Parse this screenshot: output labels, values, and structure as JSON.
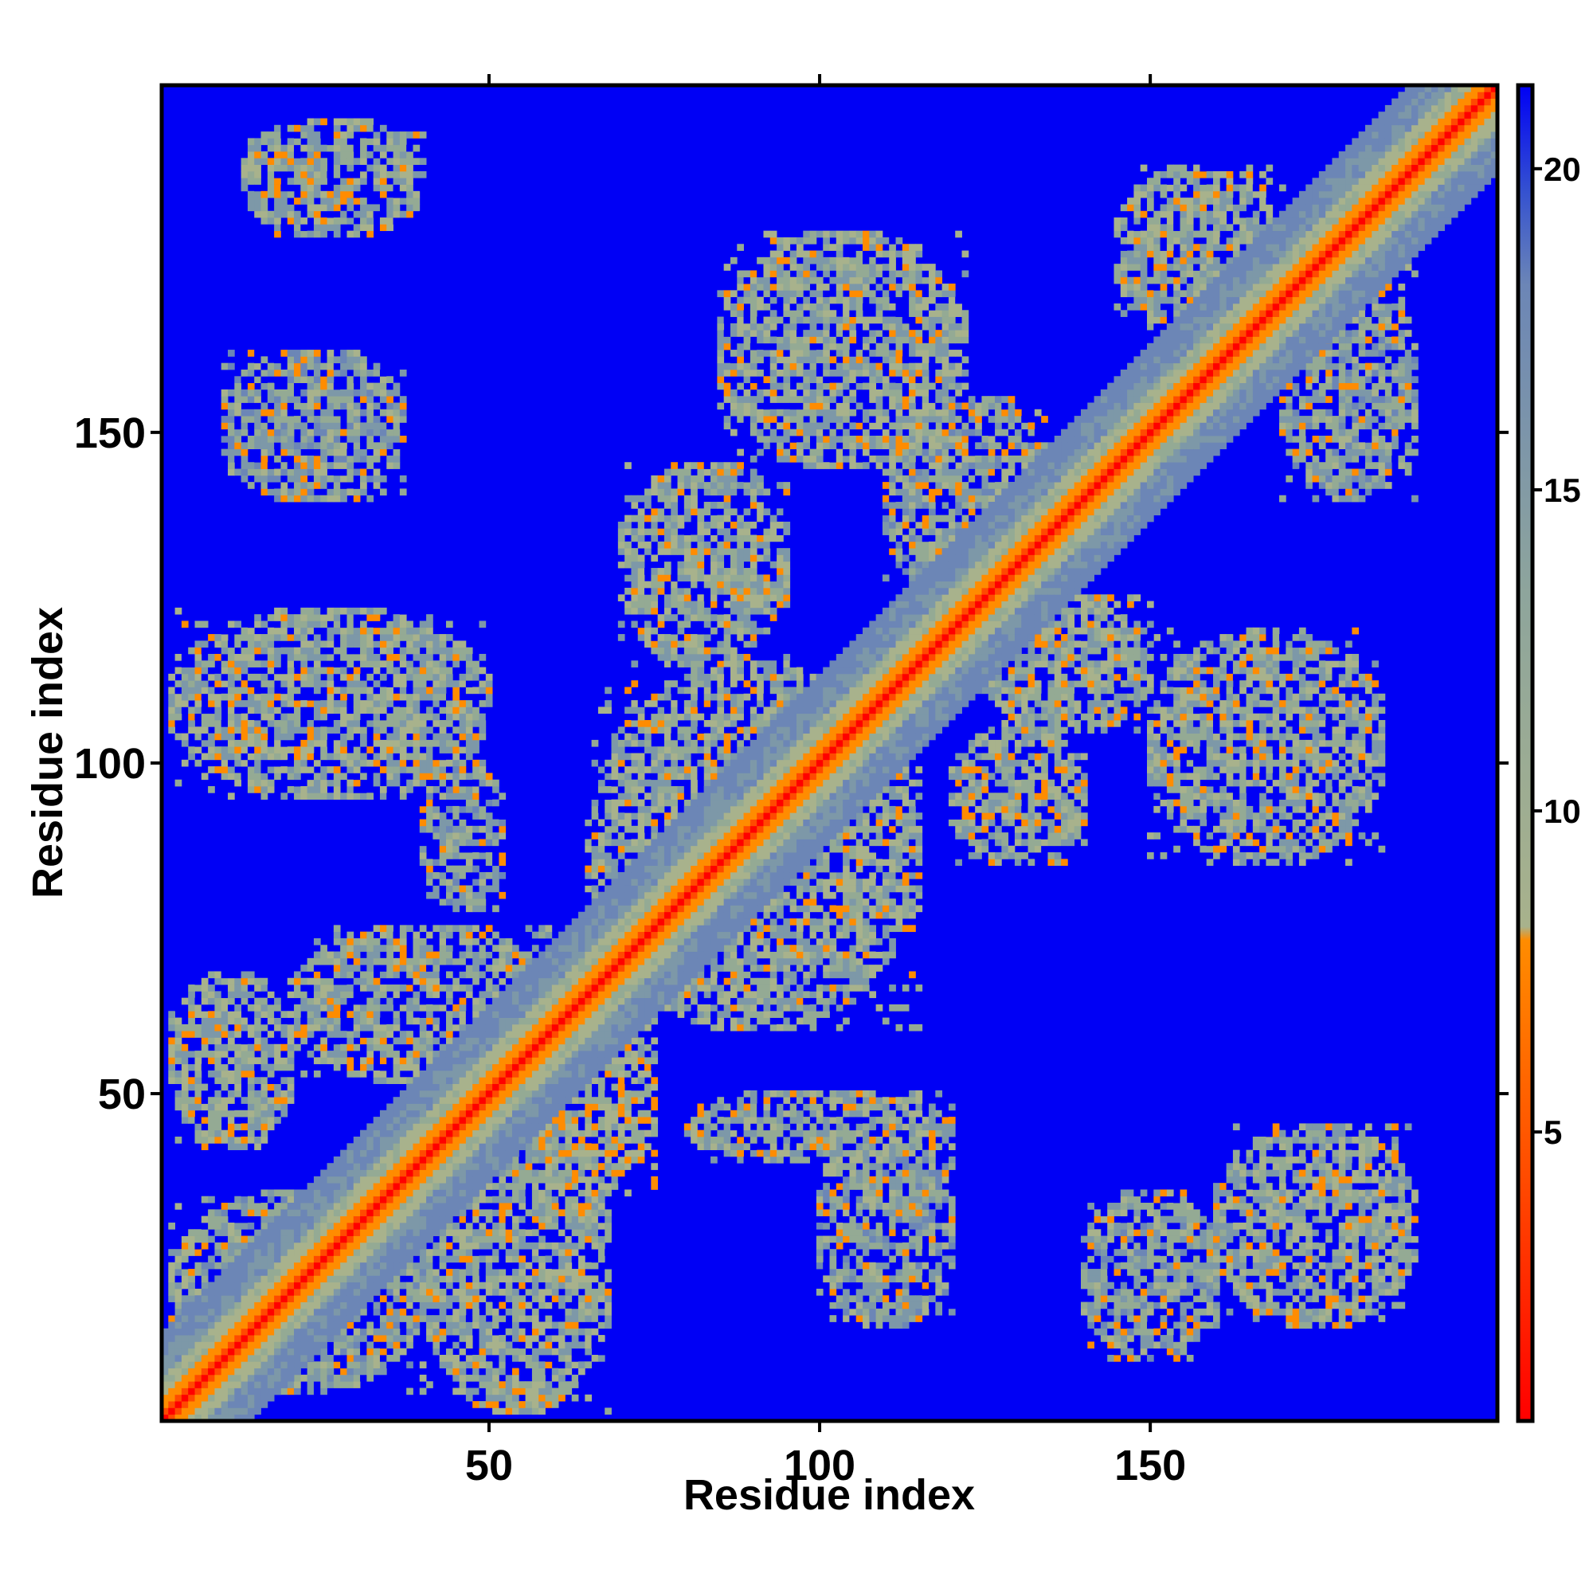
{
  "chart_data": {
    "type": "heatmap",
    "title": "",
    "xlabel": "Residue index",
    "ylabel": "Residue index",
    "xlim": [
      1,
      202
    ],
    "ylim": [
      1,
      202
    ],
    "x_ticks": [
      50,
      100,
      150
    ],
    "y_ticks": [
      50,
      100,
      150
    ],
    "colorbar": {
      "ticks": [
        5,
        10,
        15,
        20
      ],
      "range": [
        0.5,
        21.3
      ],
      "colors": [
        "#ff0000",
        "#ff7f00",
        "#9cab8c",
        "#6f86b6",
        "#0000f5"
      ],
      "low_cutoff": 8
    },
    "background_value": 21,
    "diagonal_band_half_width": 13,
    "contact_regions": [
      {
        "x": [
          13,
          40
        ],
        "y": [
          180,
          197
        ],
        "value": 13
      },
      {
        "x": [
          10,
          37
        ],
        "y": [
          140,
          162
        ],
        "value": 14
      },
      {
        "x": [
          2,
          50
        ],
        "y": [
          95,
          123
        ],
        "value": 13
      },
      {
        "x": [
          40,
          52
        ],
        "y": [
          78,
          100
        ],
        "value": 14
      },
      {
        "x": [
          2,
          20
        ],
        "y": [
          42,
          68
        ],
        "value": 13
      },
      {
        "x": [
          20,
          60
        ],
        "y": [
          52,
          75
        ],
        "value": 13
      },
      {
        "x": [
          2,
          40
        ],
        "y": [
          5,
          35
        ],
        "value": 14
      },
      {
        "x": [
          40,
          68
        ],
        "y": [
          2,
          45
        ],
        "value": 13
      },
      {
        "x": [
          52,
          75
        ],
        "y": [
          35,
          65
        ],
        "value": 11
      },
      {
        "x": [
          70,
          95
        ],
        "y": [
          115,
          145
        ],
        "value": 13
      },
      {
        "x": [
          85,
          122
        ],
        "y": [
          145,
          180
        ],
        "value": 13
      },
      {
        "x": [
          110,
          135
        ],
        "y": [
          125,
          155
        ],
        "value": 14
      },
      {
        "x": [
          65,
          115
        ],
        "y": [
          60,
          115
        ],
        "value": 13
      },
      {
        "x": [
          120,
          140
        ],
        "y": [
          85,
          105
        ],
        "value": 13
      },
      {
        "x": [
          80,
          120
        ],
        "y": [
          40,
          50
        ],
        "value": 13
      },
      {
        "x": [
          100,
          120
        ],
        "y": [
          15,
          45
        ],
        "value": 14
      },
      {
        "x": [
          140,
          160
        ],
        "y": [
          10,
          35
        ],
        "value": 14
      },
      {
        "x": [
          160,
          190
        ],
        "y": [
          15,
          45
        ],
        "value": 13
      },
      {
        "x": [
          150,
          185
        ],
        "y": [
          85,
          120
        ],
        "value": 13
      },
      {
        "x": [
          145,
          170
        ],
        "y": [
          165,
          190
        ],
        "value": 13
      },
      {
        "x": [
          170,
          190
        ],
        "y": [
          140,
          175
        ],
        "value": 14
      },
      {
        "x": [
          125,
          150
        ],
        "y": [
          105,
          125
        ],
        "value": 13
      }
    ]
  }
}
